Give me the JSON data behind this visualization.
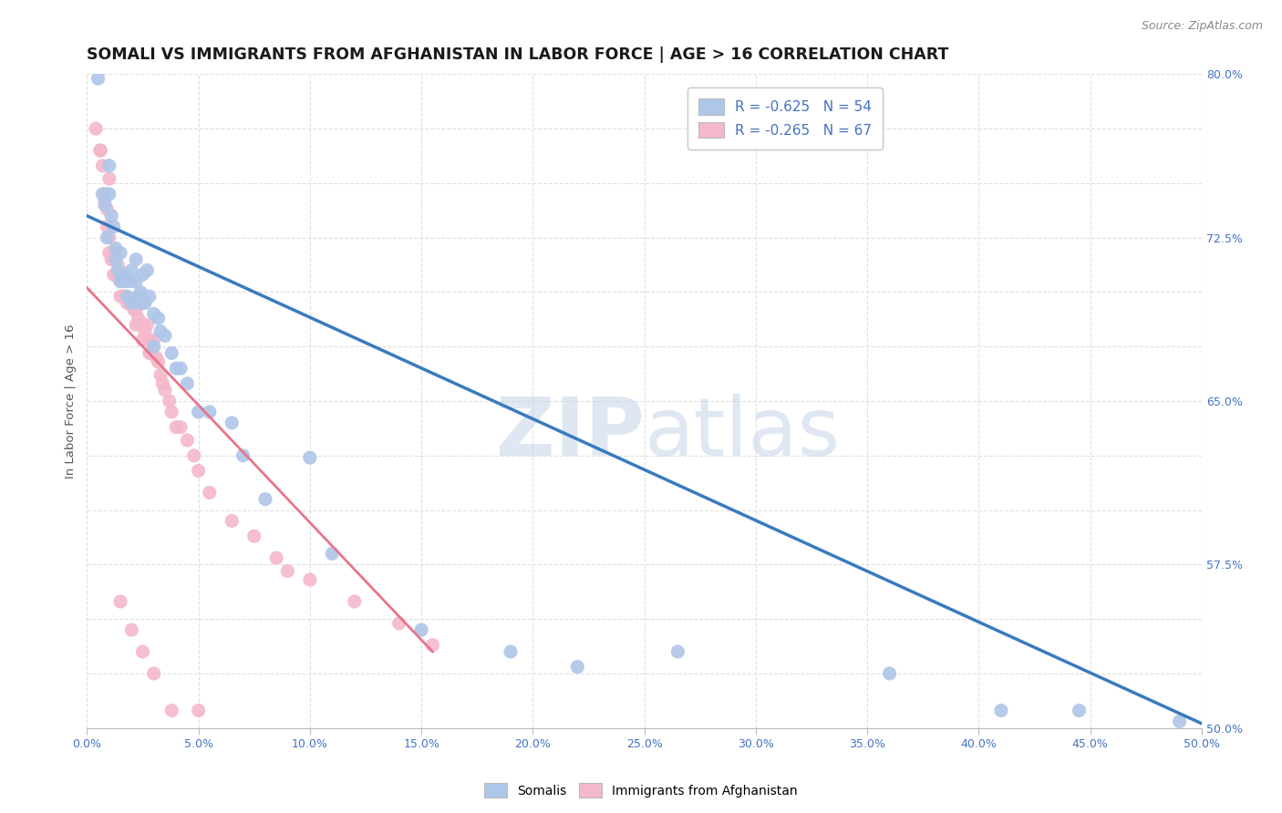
{
  "title": "SOMALI VS IMMIGRANTS FROM AFGHANISTAN IN LABOR FORCE | AGE > 16 CORRELATION CHART",
  "source": "Source: ZipAtlas.com",
  "ylabel": "In Labor Force | Age > 16",
  "xlim": [
    0.0,
    0.5
  ],
  "ylim": [
    0.5,
    0.8
  ],
  "xticks": [
    0.0,
    0.05,
    0.1,
    0.15,
    0.2,
    0.25,
    0.3,
    0.35,
    0.4,
    0.45,
    0.5
  ],
  "ytick_vals": [
    0.5,
    0.575,
    0.65,
    0.725,
    0.8
  ],
  "ytick_labels": [
    "50.0%",
    "57.5%",
    "65.0%",
    "72.5%",
    "80.0%"
  ],
  "xtick_labels": [
    "0.0%",
    "5.0%",
    "10.0%",
    "15.0%",
    "20.0%",
    "25.0%",
    "30.0%",
    "35.0%",
    "40.0%",
    "45.0%",
    "50.0%"
  ],
  "blue_fill_color": "#aec6e8",
  "pink_fill_color": "#f4b8cb",
  "blue_line_color": "#3a7abf",
  "pink_line_color": "#e8748a",
  "legend_text1": "R = -0.625   N = 54",
  "legend_text2": "R = -0.265   N = 67",
  "legend_label1": "Somalis",
  "legend_label2": "Immigrants from Afghanistan",
  "watermark_zip": "ZIP",
  "watermark_atlas": "atlas",
  "bg_color": "#ffffff",
  "grid_color": "#e0e0e0",
  "tick_label_color": "#4472c4",
  "title_color": "#1a1a1a",
  "source_color": "#888888",
  "blue_line_x": [
    0.0,
    0.5
  ],
  "blue_line_y": [
    0.735,
    0.502
  ],
  "pink_line_x": [
    0.0,
    0.155
  ],
  "pink_line_y": [
    0.702,
    0.535
  ],
  "blue_scatter_x": [
    0.005,
    0.007,
    0.008,
    0.009,
    0.01,
    0.01,
    0.011,
    0.012,
    0.013,
    0.013,
    0.014,
    0.015,
    0.015,
    0.016,
    0.017,
    0.018,
    0.018,
    0.019,
    0.02,
    0.02,
    0.021,
    0.022,
    0.022,
    0.023,
    0.024,
    0.025,
    0.025,
    0.026,
    0.027,
    0.028,
    0.03,
    0.03,
    0.032,
    0.033,
    0.035,
    0.038,
    0.04,
    0.042,
    0.045,
    0.05,
    0.055,
    0.065,
    0.07,
    0.08,
    0.1,
    0.11,
    0.15,
    0.19,
    0.22,
    0.265,
    0.36,
    0.41,
    0.445,
    0.49
  ],
  "blue_scatter_y": [
    0.798,
    0.745,
    0.74,
    0.725,
    0.758,
    0.745,
    0.735,
    0.73,
    0.72,
    0.715,
    0.71,
    0.718,
    0.705,
    0.705,
    0.708,
    0.705,
    0.698,
    0.705,
    0.71,
    0.695,
    0.695,
    0.715,
    0.705,
    0.698,
    0.7,
    0.708,
    0.695,
    0.695,
    0.71,
    0.698,
    0.69,
    0.675,
    0.688,
    0.682,
    0.68,
    0.672,
    0.665,
    0.665,
    0.658,
    0.645,
    0.645,
    0.64,
    0.625,
    0.605,
    0.624,
    0.58,
    0.545,
    0.535,
    0.528,
    0.535,
    0.525,
    0.508,
    0.508,
    0.503
  ],
  "pink_scatter_x": [
    0.004,
    0.006,
    0.007,
    0.008,
    0.009,
    0.009,
    0.01,
    0.01,
    0.011,
    0.012,
    0.012,
    0.013,
    0.013,
    0.014,
    0.015,
    0.015,
    0.016,
    0.016,
    0.017,
    0.018,
    0.018,
    0.019,
    0.02,
    0.02,
    0.021,
    0.022,
    0.022,
    0.023,
    0.024,
    0.025,
    0.025,
    0.026,
    0.027,
    0.028,
    0.028,
    0.029,
    0.03,
    0.031,
    0.032,
    0.033,
    0.034,
    0.035,
    0.037,
    0.038,
    0.04,
    0.042,
    0.045,
    0.048,
    0.05,
    0.055,
    0.065,
    0.075,
    0.085,
    0.09,
    0.1,
    0.12,
    0.14,
    0.155,
    0.01,
    0.008,
    0.006,
    0.015,
    0.02,
    0.025,
    0.03,
    0.038,
    0.05
  ],
  "pink_scatter_y": [
    0.775,
    0.765,
    0.758,
    0.745,
    0.738,
    0.73,
    0.725,
    0.718,
    0.715,
    0.715,
    0.708,
    0.718,
    0.708,
    0.712,
    0.705,
    0.698,
    0.708,
    0.698,
    0.698,
    0.705,
    0.695,
    0.695,
    0.705,
    0.695,
    0.692,
    0.692,
    0.685,
    0.688,
    0.685,
    0.685,
    0.678,
    0.682,
    0.685,
    0.678,
    0.672,
    0.672,
    0.678,
    0.67,
    0.668,
    0.662,
    0.658,
    0.655,
    0.65,
    0.645,
    0.638,
    0.638,
    0.632,
    0.625,
    0.618,
    0.608,
    0.595,
    0.588,
    0.578,
    0.572,
    0.568,
    0.558,
    0.548,
    0.538,
    0.752,
    0.742,
    0.765,
    0.558,
    0.545,
    0.535,
    0.525,
    0.508,
    0.508
  ]
}
